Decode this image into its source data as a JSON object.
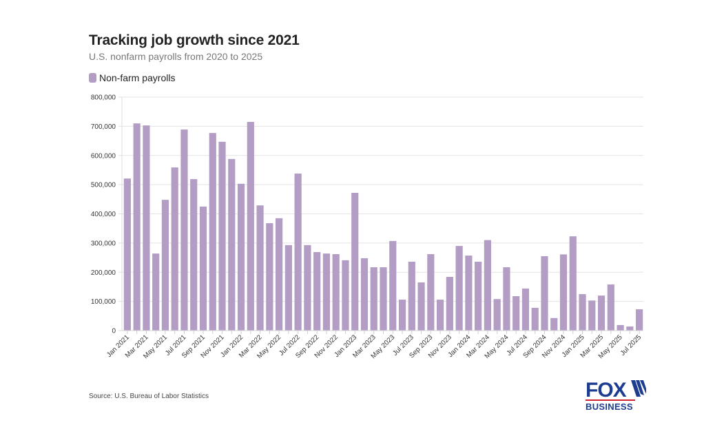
{
  "header": {
    "title": "Tracking job growth since 2021",
    "subtitle": "U.S. nonfarm payrolls from 2020 to 2025"
  },
  "legend": {
    "label": "Non-farm payrolls",
    "color": "#b39dc4"
  },
  "footer": {
    "source": "Source: U.S. Bureau of Labor Statistics"
  },
  "logo": {
    "line1": "FOX",
    "line2": "BUSINESS",
    "brand_color": "#1b3c8f",
    "accent_color": "#d0202e"
  },
  "chart_data": {
    "type": "bar",
    "title": "Tracking job growth since 2021",
    "subtitle": "U.S. nonfarm payrolls from 2020 to 2025",
    "xlabel": "",
    "ylabel": "",
    "ylim": [
      0,
      800000
    ],
    "yticks": [
      0,
      100000,
      200000,
      300000,
      400000,
      500000,
      600000,
      700000,
      800000
    ],
    "ytick_labels": [
      "0",
      "100,000",
      "200,000",
      "300,000",
      "400,000",
      "500,000",
      "600,000",
      "700,000",
      "800,000"
    ],
    "grid": true,
    "legend_position": "top-left",
    "bar_color": "#b39dc4",
    "categories": [
      "Jan 2021",
      "Feb 2021",
      "Mar 2021",
      "Apr 2021",
      "May 2021",
      "Jun 2021",
      "Jul 2021",
      "Aug 2021",
      "Sep 2021",
      "Oct 2021",
      "Nov 2021",
      "Dec 2021",
      "Jan 2022",
      "Feb 2022",
      "Mar 2022",
      "Apr 2022",
      "May 2022",
      "Jun 2022",
      "Jul 2022",
      "Aug 2022",
      "Sep 2022",
      "Oct 2022",
      "Nov 2022",
      "Dec 2022",
      "Jan 2023",
      "Feb 2023",
      "Mar 2023",
      "Apr 2023",
      "May 2023",
      "Jun 2023",
      "Jul 2023",
      "Aug 2023",
      "Sep 2023",
      "Oct 2023",
      "Nov 2023",
      "Dec 2023",
      "Jan 2024",
      "Feb 2024",
      "Mar 2024",
      "Apr 2024",
      "May 2024",
      "Jun 2024",
      "Jul 2024",
      "Aug 2024",
      "Sep 2024",
      "Oct 2024",
      "Nov 2024",
      "Dec 2024",
      "Jan 2025",
      "Feb 2025",
      "Mar 2025",
      "Apr 2025",
      "May 2025",
      "Jun 2025",
      "Jul 2025"
    ],
    "xtick_labels_shown": [
      "Jan 2021",
      "Mar 2021",
      "May 2021",
      "Jul 2021",
      "Sep 2021",
      "Nov 2021",
      "Jan 2022",
      "Mar 2022",
      "May 2022",
      "Jul 2022",
      "Sep 2022",
      "Nov 2022",
      "Jan 2023",
      "Mar 2023",
      "May 2023",
      "Jul 2023",
      "Sep 2023",
      "Nov 2023",
      "Jan 2024",
      "Mar 2024",
      "May 2024",
      "Jul 2024",
      "Sep 2024",
      "Nov 2024",
      "Jan 2025",
      "Mar 2025",
      "May 2025",
      "Jul 2025"
    ],
    "series": [
      {
        "name": "Non-farm payrolls",
        "values": [
          521000,
          710000,
          703000,
          264000,
          448000,
          559000,
          689000,
          519000,
          425000,
          677000,
          647000,
          588000,
          503000,
          715000,
          429000,
          368000,
          385000,
          293000,
          538000,
          293000,
          269000,
          264000,
          262000,
          241000,
          472000,
          248000,
          217000,
          217000,
          307000,
          106000,
          236000,
          165000,
          262000,
          106000,
          184000,
          290000,
          257000,
          236000,
          310000,
          108000,
          217000,
          118000,
          144000,
          78000,
          255000,
          43000,
          261000,
          323000,
          125000,
          103000,
          120000,
          158000,
          19000,
          14000,
          73000
        ]
      }
    ]
  }
}
